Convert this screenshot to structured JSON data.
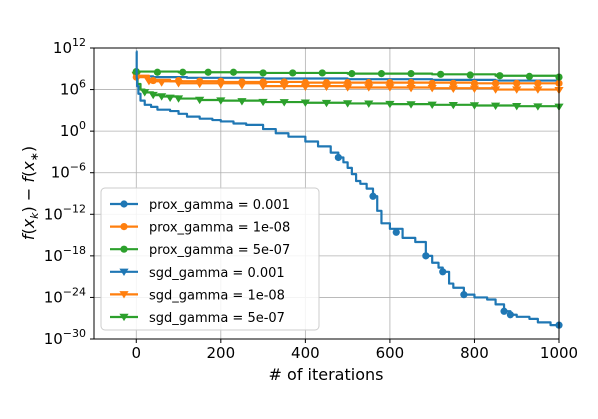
{
  "chart_data": {
    "type": "line",
    "title": "",
    "xlabel": "# of iterations",
    "ylabel": "f(x_k) - f(x_*)",
    "xlim": [
      -100,
      1000
    ],
    "ylim_exponent": [
      -30,
      12
    ],
    "y_scale": "log",
    "grid": true,
    "legend_placement": "lower-left",
    "x_ticks": [
      "0",
      "200",
      "400",
      "600",
      "800",
      "1000"
    ],
    "y_tick_exponents": [
      "12",
      "6",
      "0",
      "−6",
      "−12",
      "−18",
      "−24",
      "−30"
    ],
    "series": [
      {
        "name": "prox_gamma = 0.001",
        "color": "#1f77b4",
        "marker": "circle",
        "log10_points": [
          [
            0,
            11.5
          ],
          [
            1,
            7.6
          ],
          [
            2,
            6.5
          ],
          [
            5,
            5.4
          ],
          [
            10,
            4.4
          ],
          [
            20,
            3.8
          ],
          [
            35,
            3.5
          ],
          [
            50,
            3.1
          ],
          [
            80,
            2.9
          ],
          [
            100,
            2.5
          ],
          [
            120,
            2.1
          ],
          [
            150,
            1.8
          ],
          [
            180,
            1.6
          ],
          [
            200,
            1.4
          ],
          [
            230,
            1.1
          ],
          [
            260,
            0.9
          ],
          [
            300,
            0.3
          ],
          [
            330,
            -0.3
          ],
          [
            360,
            -0.8
          ],
          [
            400,
            -1.5
          ],
          [
            430,
            -2.2
          ],
          [
            460,
            -3.1
          ],
          [
            478,
            -3.8
          ],
          [
            490,
            -4.5
          ],
          [
            500,
            -5.3
          ],
          [
            510,
            -6.2
          ],
          [
            520,
            -7.2
          ],
          [
            530,
            -7.6
          ],
          [
            545,
            -8.3
          ],
          [
            560,
            -9.4
          ],
          [
            570,
            -11.5
          ],
          [
            580,
            -13.3
          ],
          [
            600,
            -14.1
          ],
          [
            630,
            -15.4
          ],
          [
            660,
            -16.0
          ],
          [
            685,
            -18.0
          ],
          [
            700,
            -19.0
          ],
          [
            715,
            -19.7
          ],
          [
            725,
            -20.3
          ],
          [
            740,
            -22.0
          ],
          [
            750,
            -22.6
          ],
          [
            775,
            -23.6
          ],
          [
            800,
            -24.0
          ],
          [
            830,
            -24.3
          ],
          [
            850,
            -25.0
          ],
          [
            870,
            -26.0
          ],
          [
            885,
            -26.5
          ],
          [
            900,
            -26.8
          ],
          [
            930,
            -27.1
          ],
          [
            950,
            -27.6
          ],
          [
            980,
            -28.0
          ],
          [
            1000,
            -28.0
          ]
        ],
        "marker_points": [
          [
            478,
            -3.8
          ],
          [
            560,
            -9.4
          ],
          [
            615,
            -14.6
          ],
          [
            685,
            -18.0
          ],
          [
            725,
            -20.3
          ],
          [
            775,
            -23.6
          ],
          [
            870,
            -26.0
          ],
          [
            885,
            -26.5
          ],
          [
            1000,
            -28.0
          ]
        ]
      },
      {
        "name": "prox_gamma = 1e-08",
        "color": "#ff7f0e",
        "marker": "circle",
        "log10_points": [
          [
            0,
            7.8
          ],
          [
            30,
            7.4
          ],
          [
            80,
            7.2
          ],
          [
            200,
            7.1
          ],
          [
            400,
            7.0
          ],
          [
            600,
            7.0
          ],
          [
            800,
            6.9
          ],
          [
            1000,
            6.9
          ]
        ],
        "marker_points": [
          [
            0,
            7.8
          ],
          [
            40,
            7.3
          ],
          [
            100,
            7.3
          ],
          [
            150,
            7.2
          ],
          [
            200,
            7.2
          ],
          [
            250,
            7.1
          ],
          [
            300,
            7.1
          ],
          [
            350,
            7.1
          ],
          [
            400,
            7.0
          ],
          [
            450,
            7.0
          ],
          [
            500,
            7.0
          ],
          [
            550,
            7.0
          ],
          [
            600,
            7.0
          ],
          [
            650,
            7.0
          ],
          [
            700,
            6.9
          ],
          [
            750,
            6.9
          ],
          [
            800,
            6.9
          ],
          [
            850,
            6.9
          ],
          [
            900,
            6.9
          ],
          [
            950,
            6.9
          ],
          [
            1000,
            6.9
          ]
        ]
      },
      {
        "name": "prox_gamma = 5e-07",
        "color": "#2ca02c",
        "marker": "circle",
        "log10_points": [
          [
            0,
            8.6
          ],
          [
            100,
            8.5
          ],
          [
            300,
            8.4
          ],
          [
            500,
            8.3
          ],
          [
            700,
            8.2
          ],
          [
            850,
            8.0
          ],
          [
            1000,
            7.8
          ]
        ],
        "marker_points": [
          [
            0,
            8.6
          ],
          [
            50,
            8.5
          ],
          [
            110,
            8.5
          ],
          [
            170,
            8.5
          ],
          [
            230,
            8.5
          ],
          [
            300,
            8.4
          ],
          [
            370,
            8.4
          ],
          [
            440,
            8.4
          ],
          [
            510,
            8.3
          ],
          [
            580,
            8.3
          ],
          [
            650,
            8.3
          ],
          [
            720,
            8.2
          ],
          [
            790,
            8.1
          ],
          [
            860,
            8.0
          ],
          [
            930,
            7.9
          ],
          [
            1000,
            7.8
          ]
        ]
      },
      {
        "name": "sgd_gamma = 0.001",
        "color": "#1f77b4",
        "marker": "triangle-down",
        "log10_points": [
          [
            0,
            7.9
          ],
          [
            40,
            7.8
          ],
          [
            120,
            7.7
          ],
          [
            300,
            7.6
          ],
          [
            500,
            7.5
          ],
          [
            700,
            7.4
          ],
          [
            850,
            7.3
          ],
          [
            1000,
            7.2
          ]
        ],
        "marker_points": []
      },
      {
        "name": "sgd_gamma = 1e-08",
        "color": "#ff7f0e",
        "marker": "triangle-down",
        "log10_points": [
          [
            0,
            8.0
          ],
          [
            30,
            7.2
          ],
          [
            100,
            6.9
          ],
          [
            300,
            6.5
          ],
          [
            500,
            6.3
          ],
          [
            700,
            6.2
          ],
          [
            850,
            6.0
          ],
          [
            1000,
            5.9
          ]
        ],
        "marker_points": [
          [
            0,
            8.0
          ],
          [
            30,
            7.2
          ],
          [
            60,
            7.0
          ],
          [
            100,
            6.9
          ],
          [
            150,
            6.8
          ],
          [
            200,
            6.7
          ],
          [
            250,
            6.6
          ],
          [
            300,
            6.5
          ],
          [
            350,
            6.5
          ],
          [
            400,
            6.4
          ],
          [
            450,
            6.4
          ],
          [
            500,
            6.3
          ],
          [
            550,
            6.3
          ],
          [
            600,
            6.3
          ],
          [
            650,
            6.2
          ],
          [
            700,
            6.2
          ],
          [
            750,
            6.1
          ],
          [
            800,
            6.1
          ],
          [
            850,
            6.0
          ],
          [
            900,
            6.0
          ],
          [
            950,
            6.0
          ],
          [
            1000,
            5.9
          ]
        ]
      },
      {
        "name": "sgd_gamma = 5e-07",
        "color": "#2ca02c",
        "marker": "triangle-down",
        "log10_points": [
          [
            0,
            8.1
          ],
          [
            3,
            6.8
          ],
          [
            10,
            6.0
          ],
          [
            20,
            5.6
          ],
          [
            40,
            5.2
          ],
          [
            60,
            5.0
          ],
          [
            100,
            4.7
          ],
          [
            150,
            4.5
          ],
          [
            200,
            4.4
          ],
          [
            300,
            4.2
          ],
          [
            400,
            4.1
          ],
          [
            500,
            4.0
          ],
          [
            600,
            3.9
          ],
          [
            700,
            3.8
          ],
          [
            800,
            3.7
          ],
          [
            900,
            3.6
          ],
          [
            1000,
            3.5
          ]
        ],
        "marker_points": [
          [
            0,
            8.1
          ],
          [
            20,
            5.6
          ],
          [
            40,
            5.2
          ],
          [
            60,
            5.0
          ],
          [
            80,
            4.8
          ],
          [
            100,
            4.7
          ],
          [
            150,
            4.5
          ],
          [
            200,
            4.4
          ],
          [
            250,
            4.3
          ],
          [
            300,
            4.2
          ],
          [
            350,
            4.15
          ],
          [
            400,
            4.1
          ],
          [
            450,
            4.05
          ],
          [
            500,
            4.0
          ],
          [
            550,
            3.95
          ],
          [
            600,
            3.9
          ],
          [
            650,
            3.85
          ],
          [
            700,
            3.8
          ],
          [
            750,
            3.75
          ],
          [
            800,
            3.7
          ],
          [
            850,
            3.65
          ],
          [
            900,
            3.6
          ],
          [
            950,
            3.55
          ],
          [
            1000,
            3.5
          ]
        ]
      }
    ]
  }
}
